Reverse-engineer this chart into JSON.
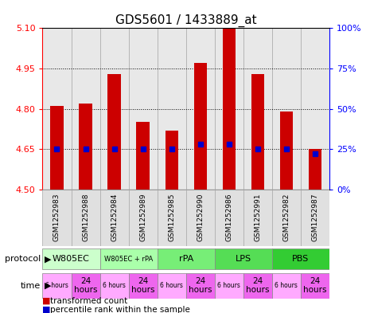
{
  "title": "GDS5601 / 1433889_at",
  "samples": [
    "GSM1252983",
    "GSM1252988",
    "GSM1252984",
    "GSM1252989",
    "GSM1252985",
    "GSM1252990",
    "GSM1252986",
    "GSM1252991",
    "GSM1252982",
    "GSM1252987"
  ],
  "transformed_count": [
    4.81,
    4.82,
    4.93,
    4.75,
    4.72,
    4.97,
    5.1,
    4.93,
    4.79,
    4.65
  ],
  "percentile_rank": [
    25,
    25,
    25,
    25,
    25,
    28,
    28,
    25,
    25,
    22
  ],
  "ylim_left": [
    4.5,
    5.1
  ],
  "ylim_right": [
    0,
    100
  ],
  "yticks_left": [
    4.5,
    4.65,
    4.8,
    4.95,
    5.1
  ],
  "yticks_right": [
    0,
    25,
    50,
    75,
    100
  ],
  "bar_color": "#cc0000",
  "dot_color": "#0000cc",
  "plot_bg": "#eeeeee",
  "protocols": [
    {
      "label": "W805EC",
      "start": 0,
      "end": 2,
      "color": "#ccffcc"
    },
    {
      "label": "W805EC + rPA",
      "start": 2,
      "end": 4,
      "color": "#aaffaa"
    },
    {
      "label": "rPA",
      "start": 4,
      "end": 6,
      "color": "#77ee77"
    },
    {
      "label": "LPS",
      "start": 6,
      "end": 8,
      "color": "#55dd55"
    },
    {
      "label": "PBS",
      "start": 8,
      "end": 10,
      "color": "#33cc33"
    }
  ],
  "time_color_light": "#ffaaff",
  "time_color_dark": "#ee66ee",
  "legend_items": [
    {
      "color": "#cc0000",
      "label": "transformed count"
    },
    {
      "color": "#0000cc",
      "label": "percentile rank within the sample"
    }
  ]
}
